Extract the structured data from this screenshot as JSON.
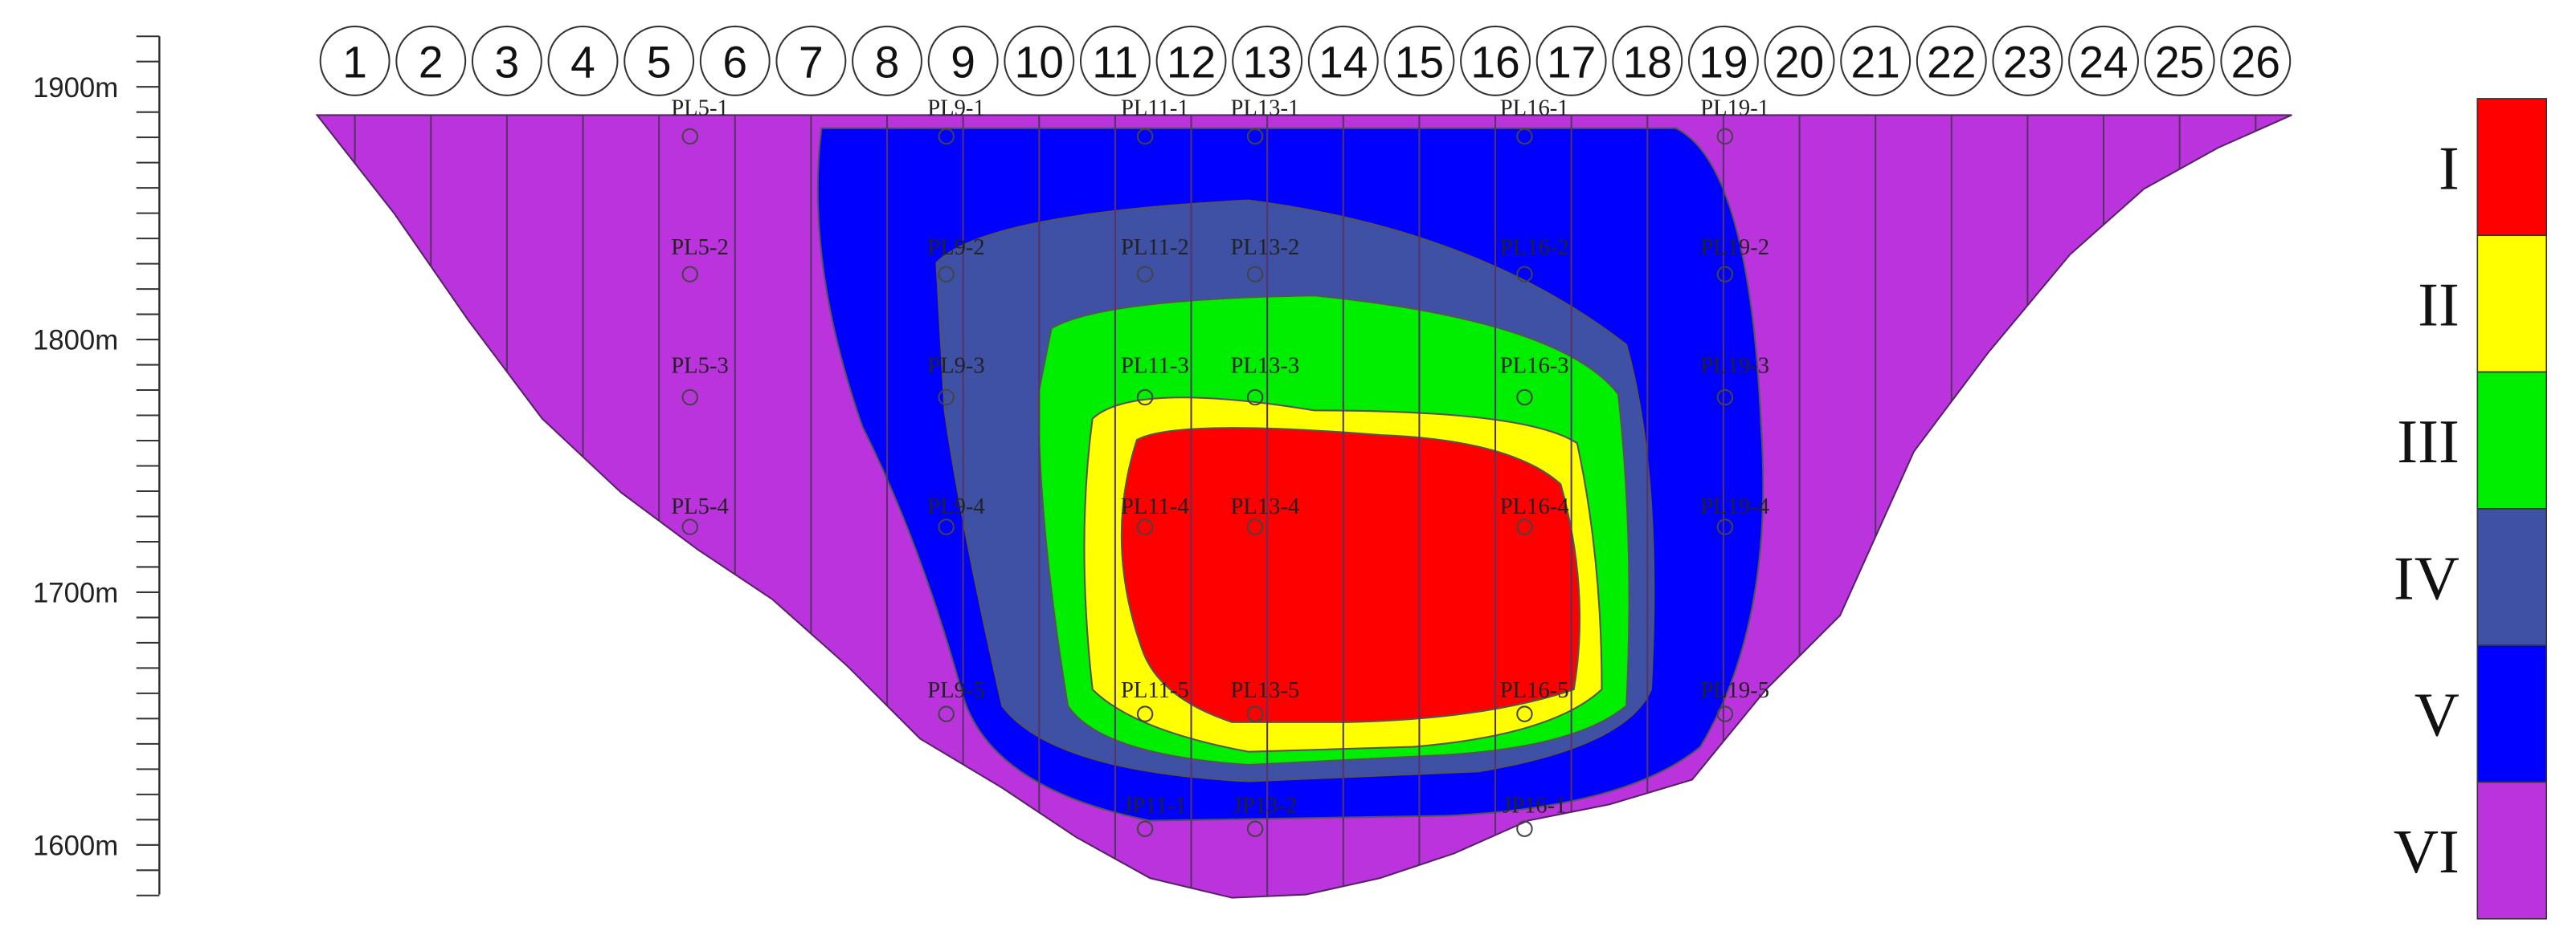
{
  "axis": {
    "labels": [
      "1900m",
      "1800m",
      "1700m",
      "1600m"
    ]
  },
  "sections": [
    "1",
    "2",
    "3",
    "4",
    "5",
    "6",
    "7",
    "8",
    "9",
    "10",
    "11",
    "12",
    "13",
    "14",
    "15",
    "16",
    "17",
    "18",
    "19",
    "20",
    "21",
    "22",
    "23",
    "24",
    "25",
    "26"
  ],
  "boreholes": [
    {
      "label": "PL5-1"
    },
    {
      "label": "PL5-2"
    },
    {
      "label": "PL5-3"
    },
    {
      "label": "PL5-4"
    },
    {
      "label": "PL9-1"
    },
    {
      "label": "PL9-2"
    },
    {
      "label": "PL9-3"
    },
    {
      "label": "PL9-4"
    },
    {
      "label": "PL9-5"
    },
    {
      "label": "PL11-1"
    },
    {
      "label": "PL11-2"
    },
    {
      "label": "PL11-3"
    },
    {
      "label": "PL11-4"
    },
    {
      "label": "PL11-5"
    },
    {
      "label": "PL13-1"
    },
    {
      "label": "PL13-2"
    },
    {
      "label": "PL13-3"
    },
    {
      "label": "PL13-4"
    },
    {
      "label": "PL13-5"
    },
    {
      "label": "PL16-1"
    },
    {
      "label": "PL16-2"
    },
    {
      "label": "PL16-3"
    },
    {
      "label": "PL16-4"
    },
    {
      "label": "PL16-5"
    },
    {
      "label": "PL19-1"
    },
    {
      "label": "PL19-2"
    },
    {
      "label": "PL19-3"
    },
    {
      "label": "PL19-4"
    },
    {
      "label": "PL19-5"
    },
    {
      "label": "JP11-1"
    },
    {
      "label": "JP13-2"
    },
    {
      "label": "JP16-1"
    }
  ],
  "legend": [
    {
      "label": "I",
      "color": "#ff0000"
    },
    {
      "label": "II",
      "color": "#ffff00"
    },
    {
      "label": "III",
      "color": "#00ee00"
    },
    {
      "label": "IV",
      "color": "#3f51a5"
    },
    {
      "label": "V",
      "color": "#0000ff"
    },
    {
      "label": "VI",
      "color": "#bb33dd"
    }
  ]
}
